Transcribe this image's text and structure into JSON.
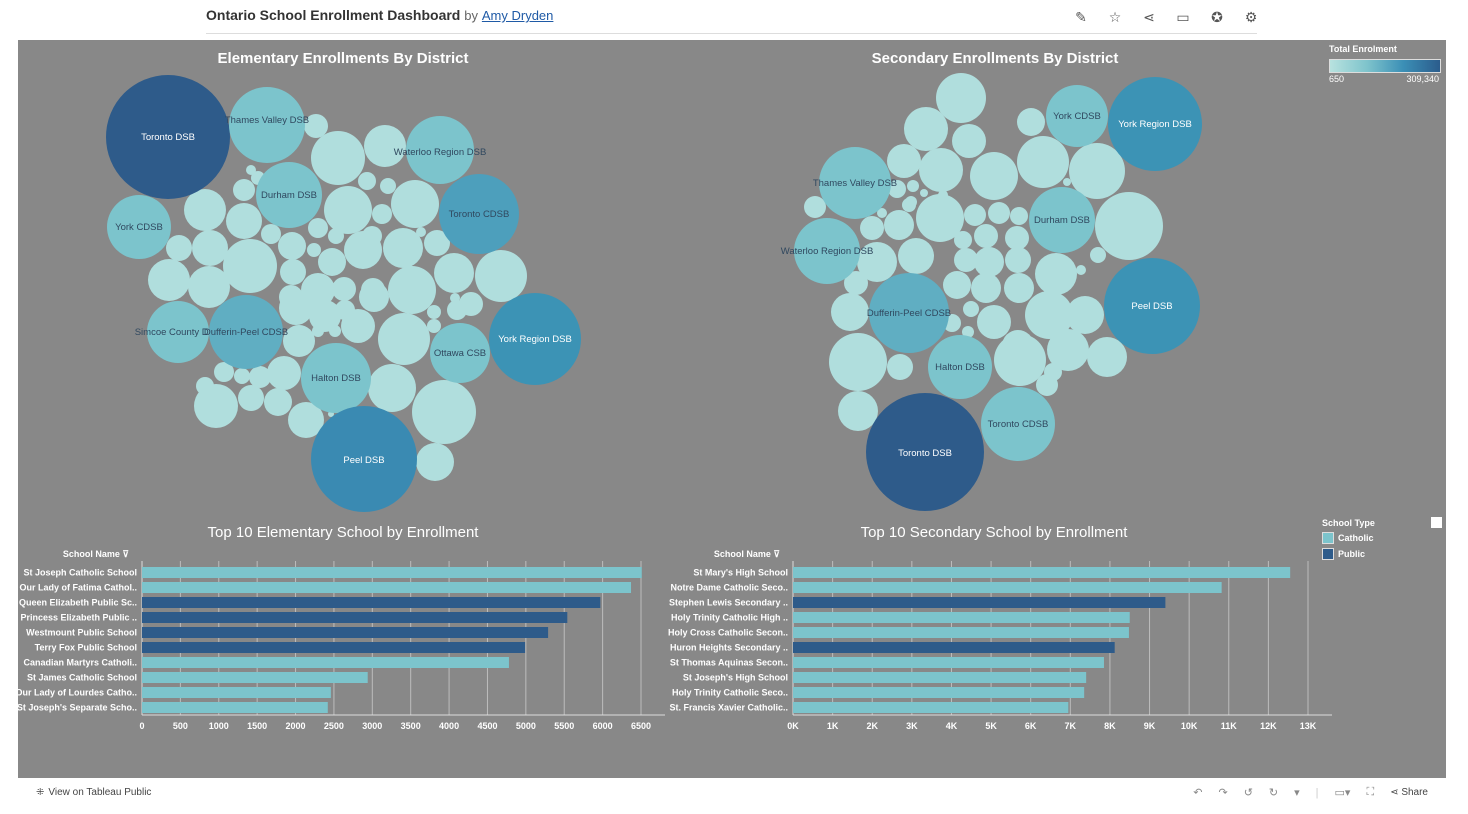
{
  "header": {
    "title": "Ontario School Enrollment Dashboard",
    "by": "by",
    "author": "Amy Dryden",
    "icons": [
      "edit-icon",
      "star-icon",
      "share-network-icon",
      "comment-icon",
      "badge-icon",
      "gear-icon"
    ]
  },
  "colors": {
    "background": "#888888",
    "catholic": "#7cc4cc",
    "public": "#2e5b8a"
  },
  "elementary_bubbles": {
    "title": "Elementary Enrollments By District",
    "districts": [
      "Toronto DSB",
      "Thames Valley DSB",
      "Waterloo Region DSB",
      "Durham DSB",
      "Toronto CDSB",
      "York CDSB",
      "Simcoe County DSB",
      "Dufferin-Peel CDSB",
      "York Region DSB",
      "Ottawa CSB",
      "Halton DSB",
      "Peel DSB"
    ]
  },
  "secondary_bubbles": {
    "title": "Secondary Enrollments By District",
    "districts": [
      "York CDSB",
      "York Region DSB",
      "Thames Valley DSB",
      "Durham DSB",
      "Waterloo Region DSB",
      "Peel DSB",
      "Dufferin-Peel CDSB",
      "Halton DSB",
      "Toronto CDSB",
      "Toronto DSB"
    ]
  },
  "legend_total": {
    "title": "Total Enrolment",
    "min": "650",
    "max": "309,340"
  },
  "legend_type": {
    "title": "School Type",
    "items": [
      {
        "label": "Catholic",
        "color": "#7cc4cc"
      },
      {
        "label": "Public",
        "color": "#2e5b8a"
      }
    ]
  },
  "chart_data": [
    {
      "type": "bar",
      "title": "Top 10 Elementary School by Enrollment",
      "ylabel": "School Name",
      "categories": [
        "St Joseph Catholic School",
        "Our Lady of Fatima Cathol..",
        "Queen Elizabeth Public Sc..",
        "Princess Elizabeth Public ..",
        "Westmount Public School",
        "Terry Fox Public School",
        "Canadian Martyrs Catholi..",
        "St James Catholic School",
        "Our Lady of Lourdes Catho..",
        "St Joseph's Separate Scho.."
      ],
      "values": [
        6510,
        6370,
        5970,
        5540,
        5290,
        4990,
        4780,
        2940,
        2460,
        2420
      ],
      "school_type": [
        "Catholic",
        "Catholic",
        "Public",
        "Public",
        "Public",
        "Public",
        "Catholic",
        "Catholic",
        "Catholic",
        "Catholic"
      ],
      "xlim": [
        0,
        6500
      ],
      "ticks": [
        "0",
        "500",
        "1000",
        "1500",
        "2000",
        "2500",
        "3000",
        "3500",
        "4000",
        "4500",
        "5000",
        "5500",
        "6000",
        "6500"
      ]
    },
    {
      "type": "bar",
      "title": "Top 10 Secondary School by Enrollment",
      "ylabel": "School Name",
      "categories": [
        "St Mary's High School",
        "Notre Dame Catholic Seco..",
        "Stephen Lewis Secondary ..",
        "Holy Trinity Catholic High ..",
        "Holy Cross Catholic Secon..",
        "Huron Heights Secondary ..",
        "St Thomas Aquinas Secon..",
        "St Joseph's High School",
        "Holy Trinity Catholic Seco..",
        "St. Francis Xavier Catholic.."
      ],
      "values": [
        12550,
        10820,
        9400,
        8500,
        8480,
        8120,
        7850,
        7400,
        7350,
        6950
      ],
      "school_type": [
        "Catholic",
        "Catholic",
        "Public",
        "Catholic",
        "Catholic",
        "Public",
        "Catholic",
        "Catholic",
        "Catholic",
        "Catholic"
      ],
      "xlim": [
        0,
        13000
      ],
      "ticks": [
        "0K",
        "1K",
        "2K",
        "3K",
        "4K",
        "5K",
        "6K",
        "7K",
        "8K",
        "9K",
        "10K",
        "11K",
        "12K",
        "13K"
      ]
    }
  ],
  "footer": {
    "view_label": "View on Tableau Public",
    "share_label": "Share"
  }
}
